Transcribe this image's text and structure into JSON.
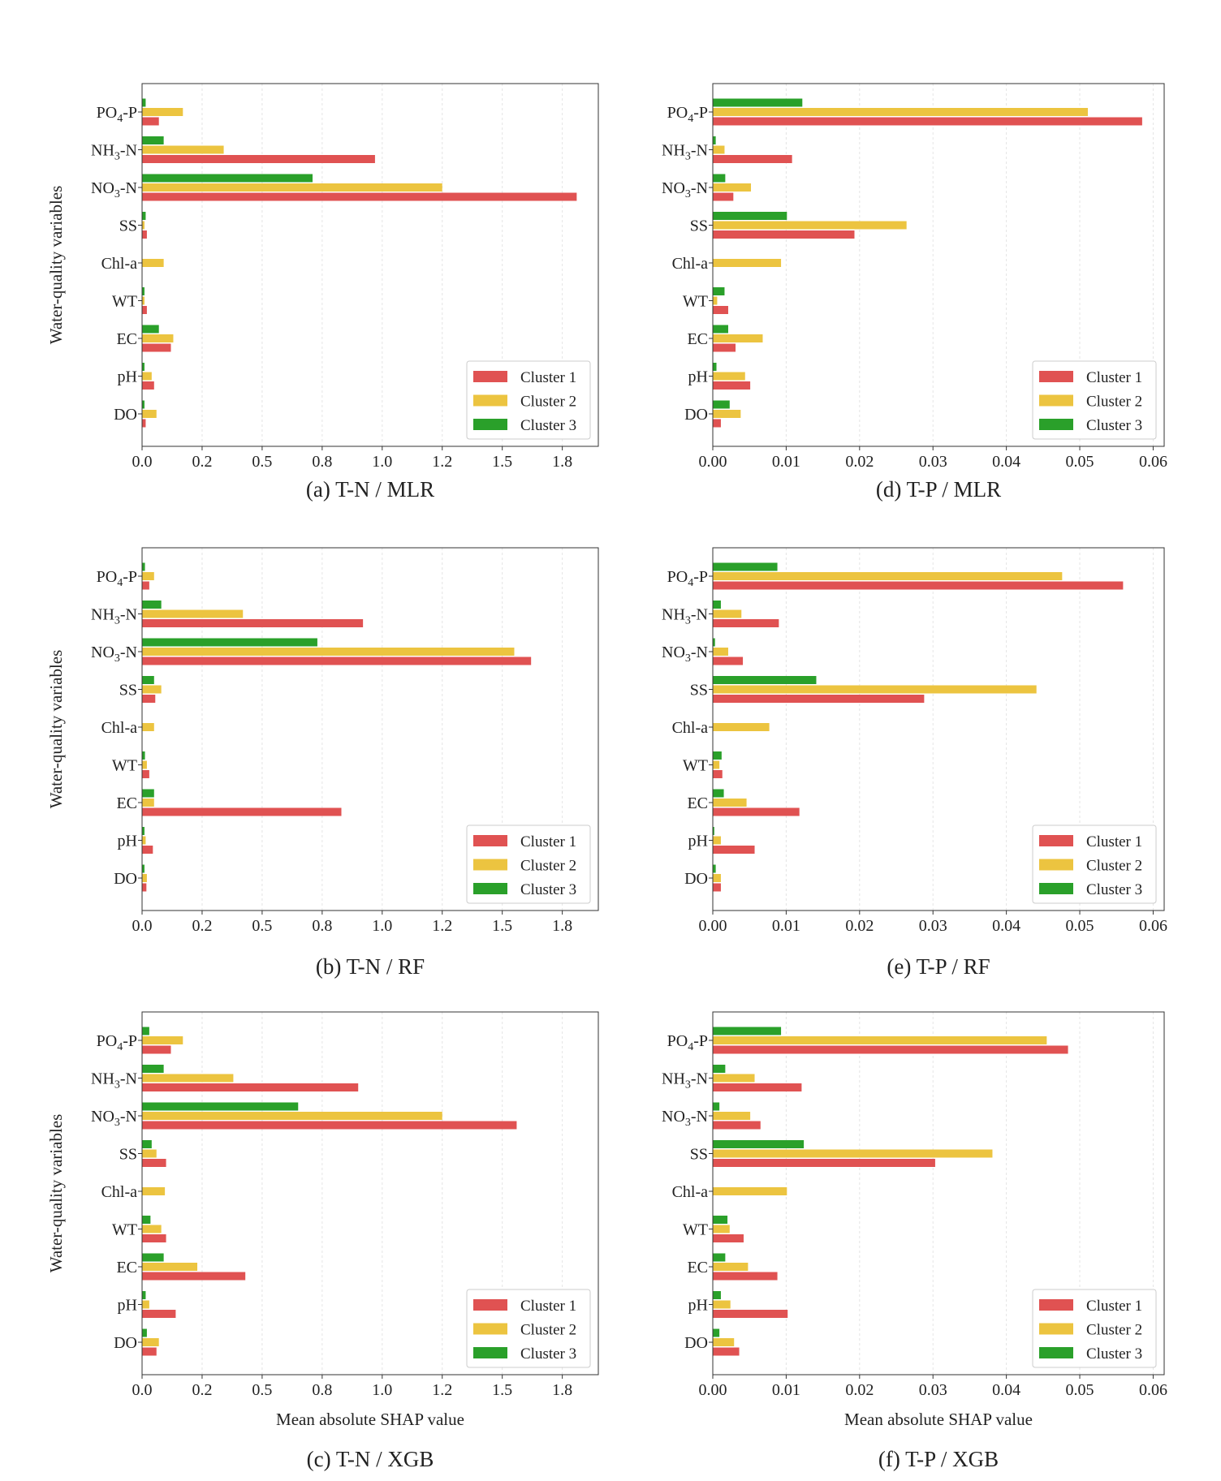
{
  "figure": {
    "y_axis_title": "Water-quality variables",
    "x_axis_title": "Mean absolute SHAP value"
  },
  "colors": {
    "cluster1": "#e05252",
    "cluster2": "#ecc440",
    "cluster3": "#2aa02a"
  },
  "legend": [
    "Cluster 1",
    "Cluster 2",
    "Cluster 3"
  ],
  "variables": [
    {
      "base": "PO",
      "sub": "4",
      "tail": "-P"
    },
    {
      "base": "NH",
      "sub": "3",
      "tail": "-N"
    },
    {
      "base": "NO",
      "sub": "3",
      "tail": "-N"
    },
    {
      "base": "SS",
      "sub": "",
      "tail": ""
    },
    {
      "base": "Chl-a",
      "sub": "",
      "tail": ""
    },
    {
      "base": "WT",
      "sub": "",
      "tail": ""
    },
    {
      "base": "EC",
      "sub": "",
      "tail": ""
    },
    {
      "base": "pH",
      "sub": "",
      "tail": ""
    },
    {
      "base": "DO",
      "sub": "",
      "tail": ""
    }
  ],
  "chart_data": [
    {
      "type": "bar",
      "id": "a",
      "caption": "(a) T-N / MLR",
      "target": "T-N",
      "model": "MLR",
      "xlim": [
        0,
        1.9
      ],
      "ticks": [
        0,
        0.25,
        0.5,
        0.75,
        1.0,
        1.25,
        1.5,
        1.75
      ],
      "tick_labels": [
        "0.0",
        "0.2",
        "0.5",
        "0.8",
        "1.0",
        "1.2",
        "1.5",
        "1.8"
      ],
      "categories": [
        "PO4-P",
        "NH3-N",
        "NO3-N",
        "SS",
        "Chl-a",
        "WT",
        "EC",
        "pH",
        "DO"
      ],
      "series": [
        {
          "name": "Cluster 1",
          "values": [
            0.07,
            0.97,
            1.81,
            0.02,
            0.0,
            0.02,
            0.12,
            0.05,
            0.015
          ]
        },
        {
          "name": "Cluster 2",
          "values": [
            0.17,
            0.34,
            1.25,
            0.01,
            0.09,
            0.01,
            0.13,
            0.04,
            0.06
          ]
        },
        {
          "name": "Cluster 3",
          "values": [
            0.015,
            0.09,
            0.71,
            0.015,
            0.0,
            0.01,
            0.07,
            0.01,
            0.01
          ]
        }
      ]
    },
    {
      "type": "bar",
      "id": "d",
      "caption": "(d) T-P / MLR",
      "target": "T-P",
      "model": "MLR",
      "xlim": [
        0,
        0.0615
      ],
      "ticks": [
        0,
        0.01,
        0.02,
        0.03,
        0.04,
        0.05,
        0.06
      ],
      "tick_labels": [
        "0.00",
        "0.01",
        "0.02",
        "0.03",
        "0.04",
        "0.05",
        "0.06"
      ],
      "categories": [
        "PO4-P",
        "NH3-N",
        "NO3-N",
        "SS",
        "Chl-a",
        "WT",
        "EC",
        "pH",
        "DO"
      ],
      "series": [
        {
          "name": "Cluster 1",
          "values": [
            0.0585,
            0.0108,
            0.0028,
            0.0193,
            0.0,
            0.0021,
            0.0031,
            0.0051,
            0.0011
          ]
        },
        {
          "name": "Cluster 2",
          "values": [
            0.0511,
            0.0016,
            0.0052,
            0.0264,
            0.0093,
            0.0006,
            0.0068,
            0.0044,
            0.0038
          ]
        },
        {
          "name": "Cluster 3",
          "values": [
            0.0122,
            0.0004,
            0.0017,
            0.0101,
            0.0,
            0.0016,
            0.0021,
            0.0005,
            0.0023
          ]
        }
      ]
    },
    {
      "type": "bar",
      "id": "b",
      "caption": "(b) T-N / RF",
      "target": "T-N",
      "model": "RF",
      "xlim": [
        0,
        1.9
      ],
      "ticks": [
        0,
        0.25,
        0.5,
        0.75,
        1.0,
        1.25,
        1.5,
        1.75
      ],
      "tick_labels": [
        "0.0",
        "0.2",
        "0.5",
        "0.8",
        "1.0",
        "1.2",
        "1.5",
        "1.8"
      ],
      "categories": [
        "PO4-P",
        "NH3-N",
        "NO3-N",
        "SS",
        "Chl-a",
        "WT",
        "EC",
        "pH",
        "DO"
      ],
      "series": [
        {
          "name": "Cluster 1",
          "values": [
            0.03,
            0.92,
            1.62,
            0.055,
            0.0,
            0.03,
            0.83,
            0.045,
            0.018
          ]
        },
        {
          "name": "Cluster 2",
          "values": [
            0.05,
            0.42,
            1.55,
            0.08,
            0.05,
            0.02,
            0.05,
            0.015,
            0.02
          ]
        },
        {
          "name": "Cluster 3",
          "values": [
            0.012,
            0.08,
            0.73,
            0.05,
            0.0,
            0.012,
            0.05,
            0.01,
            0.01
          ]
        }
      ]
    },
    {
      "type": "bar",
      "id": "e",
      "caption": "(e) T-P / RF",
      "target": "T-P",
      "model": "RF",
      "xlim": [
        0,
        0.0615
      ],
      "ticks": [
        0,
        0.01,
        0.02,
        0.03,
        0.04,
        0.05,
        0.06
      ],
      "tick_labels": [
        "0.00",
        "0.01",
        "0.02",
        "0.03",
        "0.04",
        "0.05",
        "0.06"
      ],
      "categories": [
        "PO4-P",
        "NH3-N",
        "NO3-N",
        "SS",
        "Chl-a",
        "WT",
        "EC",
        "pH",
        "DO"
      ],
      "series": [
        {
          "name": "Cluster 1",
          "values": [
            0.0559,
            0.009,
            0.0041,
            0.0288,
            0.0,
            0.0013,
            0.0118,
            0.0057,
            0.0011
          ]
        },
        {
          "name": "Cluster 2",
          "values": [
            0.0476,
            0.0039,
            0.0021,
            0.0441,
            0.0077,
            0.0009,
            0.0046,
            0.0011,
            0.0011
          ]
        },
        {
          "name": "Cluster 3",
          "values": [
            0.0088,
            0.0011,
            0.0003,
            0.0141,
            0.0,
            0.0012,
            0.0015,
            0.0002,
            0.0004
          ]
        }
      ]
    },
    {
      "type": "bar",
      "id": "c",
      "caption": "(c) T-N / XGB",
      "target": "T-N",
      "model": "XGB",
      "xlim": [
        0,
        1.9
      ],
      "ticks": [
        0,
        0.25,
        0.5,
        0.75,
        1.0,
        1.25,
        1.5,
        1.75
      ],
      "tick_labels": [
        "0.0",
        "0.2",
        "0.5",
        "0.8",
        "1.0",
        "1.2",
        "1.5",
        "1.8"
      ],
      "categories": [
        "PO4-P",
        "NH3-N",
        "NO3-N",
        "SS",
        "Chl-a",
        "WT",
        "EC",
        "pH",
        "DO"
      ],
      "series": [
        {
          "name": "Cluster 1",
          "values": [
            0.12,
            0.9,
            1.56,
            0.1,
            0.0,
            0.1,
            0.43,
            0.14,
            0.06
          ]
        },
        {
          "name": "Cluster 2",
          "values": [
            0.17,
            0.38,
            1.25,
            0.06,
            0.095,
            0.08,
            0.23,
            0.03,
            0.07
          ]
        },
        {
          "name": "Cluster 3",
          "values": [
            0.03,
            0.09,
            0.65,
            0.04,
            0.0,
            0.035,
            0.09,
            0.015,
            0.02
          ]
        }
      ]
    },
    {
      "type": "bar",
      "id": "f",
      "caption": "(f) T-P / XGB",
      "target": "T-P",
      "model": "XGB",
      "xlim": [
        0,
        0.0615
      ],
      "ticks": [
        0,
        0.01,
        0.02,
        0.03,
        0.04,
        0.05,
        0.06
      ],
      "tick_labels": [
        "0.00",
        "0.01",
        "0.02",
        "0.03",
        "0.04",
        "0.05",
        "0.06"
      ],
      "categories": [
        "PO4-P",
        "NH3-N",
        "NO3-N",
        "SS",
        "Chl-a",
        "WT",
        "EC",
        "pH",
        "DO"
      ],
      "series": [
        {
          "name": "Cluster 1",
          "values": [
            0.0484,
            0.0121,
            0.0065,
            0.0303,
            0.0,
            0.0042,
            0.0088,
            0.0102,
            0.0036
          ]
        },
        {
          "name": "Cluster 2",
          "values": [
            0.0455,
            0.0057,
            0.0051,
            0.0381,
            0.0101,
            0.0023,
            0.0048,
            0.0024,
            0.0029
          ]
        },
        {
          "name": "Cluster 3",
          "values": [
            0.0093,
            0.0017,
            0.0009,
            0.0124,
            0.0,
            0.002,
            0.0017,
            0.0011,
            0.0009
          ]
        }
      ]
    }
  ]
}
